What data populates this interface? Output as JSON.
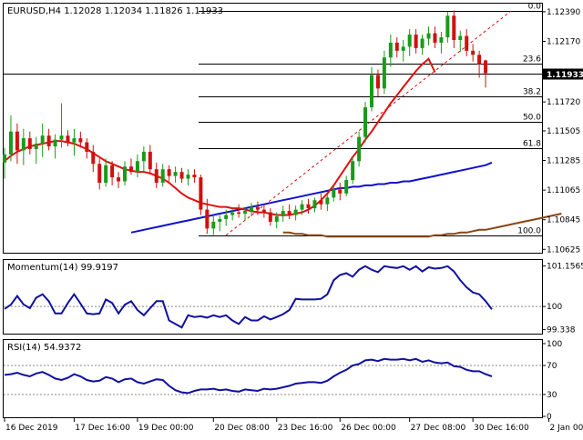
{
  "chart_data": [
    {
      "type": "candlestick",
      "title": "EURUSD,H4  1.12028 1.12034 1.11826 1.11933",
      "symbol": "EURUSD",
      "timeframe": "H4",
      "ohlc_last": [
        1.12028,
        1.12034,
        1.11826,
        1.11933
      ],
      "current_price_label": "1.11933",
      "current_price": 1.11933,
      "ylim": [
        1.106,
        1.1245
      ],
      "yticks": [
        {
          "value": 1.1239,
          "label": "1.12390"
        },
        {
          "value": 1.1217,
          "label": "1.12170"
        },
        {
          "value": 1.1172,
          "label": "1.11720"
        },
        {
          "value": 1.11505,
          "label": "1.11505"
        },
        {
          "value": 1.11285,
          "label": "1.11285"
        },
        {
          "value": 1.11065,
          "label": "1.11065"
        },
        {
          "value": 1.10845,
          "label": "1.10845"
        },
        {
          "value": 1.10625,
          "label": "1.10625"
        }
      ],
      "xticks": [
        {
          "x": 0,
          "label": "16 Dec 2019"
        },
        {
          "x": 11,
          "label": "17 Dec 16:00"
        },
        {
          "x": 21,
          "label": "19 Dec 00:00"
        },
        {
          "x": 33,
          "label": "20 Dec 08:00"
        },
        {
          "x": 43,
          "label": "23 Dec 16:00"
        },
        {
          "x": 53,
          "label": "26 Dec 00:00"
        },
        {
          "x": 64,
          "label": "27 Dec 08:00"
        },
        {
          "x": 74,
          "label": "30 Dec 16:00"
        },
        {
          "x": 86,
          "label": "2 Jan 00:00"
        }
      ],
      "fibonacci": {
        "levels": [
          {
            "label": "0.0",
            "value": 1.12395
          },
          {
            "label": "23.6",
            "value": 1.12005
          },
          {
            "label": "38.2",
            "value": 1.1176
          },
          {
            "label": "50.0",
            "value": 1.1157
          },
          {
            "label": "61.8",
            "value": 1.11375
          },
          {
            "label": "100.0",
            "value": 1.1073
          }
        ],
        "trend": {
          "from": [
            35,
            1.1073
          ],
          "to": [
            80,
            1.12395
          ]
        }
      },
      "candles": [
        [
          1.1127,
          1.1138,
          1.1115,
          1.1133
        ],
        [
          1.1133,
          1.1162,
          1.1128,
          1.115
        ],
        [
          1.115,
          1.1156,
          1.1126,
          1.1136
        ],
        [
          1.1136,
          1.1152,
          1.1125,
          1.1145
        ],
        [
          1.1145,
          1.115,
          1.1133,
          1.1137
        ],
        [
          1.1137,
          1.1146,
          1.1126,
          1.1141
        ],
        [
          1.1141,
          1.1156,
          1.1131,
          1.1147
        ],
        [
          1.1147,
          1.1152,
          1.1136,
          1.1139
        ],
        [
          1.1139,
          1.1148,
          1.113,
          1.1144
        ],
        [
          1.1144,
          1.1171,
          1.1138,
          1.1147
        ],
        [
          1.1147,
          1.1151,
          1.1139,
          1.1142
        ],
        [
          1.1142,
          1.1152,
          1.1132,
          1.1145
        ],
        [
          1.1145,
          1.115,
          1.1138,
          1.1142
        ],
        [
          1.1142,
          1.1145,
          1.113,
          1.1135
        ],
        [
          1.1135,
          1.114,
          1.112,
          1.1126
        ],
        [
          1.1126,
          1.113,
          1.1107,
          1.1112
        ],
        [
          1.1112,
          1.113,
          1.1109,
          1.1125
        ],
        [
          1.1125,
          1.1128,
          1.111,
          1.1116
        ],
        [
          1.1116,
          1.112,
          1.1108,
          1.1113
        ],
        [
          1.1113,
          1.1128,
          1.111,
          1.1124
        ],
        [
          1.1124,
          1.113,
          1.1118,
          1.112
        ],
        [
          1.112,
          1.1133,
          1.1116,
          1.1128
        ],
        [
          1.1128,
          1.1139,
          1.112,
          1.1135
        ],
        [
          1.1135,
          1.114,
          1.1118,
          1.1122
        ],
        [
          1.1122,
          1.1127,
          1.1108,
          1.1112
        ],
        [
          1.1112,
          1.1126,
          1.1109,
          1.1122
        ],
        [
          1.1122,
          1.1125,
          1.1113,
          1.1117
        ],
        [
          1.1117,
          1.1124,
          1.1112,
          1.112
        ],
        [
          1.112,
          1.1123,
          1.1112,
          1.1115
        ],
        [
          1.1115,
          1.1122,
          1.111,
          1.1118
        ],
        [
          1.1118,
          1.1122,
          1.1112,
          1.1116
        ],
        [
          1.1116,
          1.1118,
          1.1088,
          1.1092
        ],
        [
          1.1092,
          1.11,
          1.1074,
          1.1078
        ],
        [
          1.1078,
          1.1088,
          1.1073,
          1.1083
        ],
        [
          1.1083,
          1.1088,
          1.1076,
          1.1085
        ],
        [
          1.1085,
          1.1092,
          1.108,
          1.1088
        ],
        [
          1.1088,
          1.1093,
          1.1084,
          1.109
        ],
        [
          1.109,
          1.1096,
          1.1086,
          1.1089
        ],
        [
          1.1089,
          1.1094,
          1.1084,
          1.1091
        ],
        [
          1.1091,
          1.1097,
          1.1087,
          1.1094
        ],
        [
          1.1094,
          1.1098,
          1.1088,
          1.1092
        ],
        [
          1.1092,
          1.1096,
          1.1086,
          1.109
        ],
        [
          1.109,
          1.1093,
          1.108,
          1.1083
        ],
        [
          1.1083,
          1.109,
          1.1078,
          1.1087
        ],
        [
          1.1087,
          1.1095,
          1.1083,
          1.1091
        ],
        [
          1.1091,
          1.1096,
          1.1085,
          1.1088
        ],
        [
          1.1088,
          1.1095,
          1.1084,
          1.1092
        ],
        [
          1.1092,
          1.1099,
          1.1088,
          1.1096
        ],
        [
          1.1096,
          1.11,
          1.1089,
          1.1093
        ],
        [
          1.1093,
          1.1101,
          1.109,
          1.1099
        ],
        [
          1.1099,
          1.1104,
          1.1092,
          1.1096
        ],
        [
          1.1096,
          1.1103,
          1.1091,
          1.1101
        ],
        [
          1.1101,
          1.111,
          1.1098,
          1.1107
        ],
        [
          1.1107,
          1.1112,
          1.1099,
          1.1104
        ],
        [
          1.1104,
          1.1117,
          1.1102,
          1.1114
        ],
        [
          1.1114,
          1.1131,
          1.1111,
          1.1128
        ],
        [
          1.1128,
          1.115,
          1.1124,
          1.1146
        ],
        [
          1.1146,
          1.1172,
          1.1142,
          1.1168
        ],
        [
          1.1168,
          1.1198,
          1.1165,
          1.1192
        ],
        [
          1.1192,
          1.1196,
          1.1176,
          1.1182
        ],
        [
          1.1182,
          1.121,
          1.1178,
          1.1205
        ],
        [
          1.1205,
          1.1222,
          1.1198,
          1.1216
        ],
        [
          1.1216,
          1.122,
          1.1205,
          1.121
        ],
        [
          1.121,
          1.1218,
          1.1202,
          1.1213
        ],
        [
          1.1213,
          1.1226,
          1.1206,
          1.1222
        ],
        [
          1.1222,
          1.1226,
          1.1208,
          1.1212
        ],
        [
          1.1212,
          1.1222,
          1.1207,
          1.1219
        ],
        [
          1.1219,
          1.1228,
          1.1214,
          1.1223
        ],
        [
          1.1223,
          1.1228,
          1.1212,
          1.1216
        ],
        [
          1.1216,
          1.1224,
          1.1208,
          1.122
        ],
        [
          1.122,
          1.1239,
          1.1216,
          1.1236
        ],
        [
          1.1236,
          1.124,
          1.1212,
          1.1218
        ],
        [
          1.1218,
          1.1225,
          1.1209,
          1.1221
        ],
        [
          1.1221,
          1.1226,
          1.1206,
          1.121
        ],
        [
          1.121,
          1.1215,
          1.1202,
          1.1207
        ],
        [
          1.1207,
          1.121,
          1.119,
          1.12
        ],
        [
          1.12028,
          1.12034,
          1.11826,
          1.11933
        ]
      ],
      "ma_red": [
        1.1128,
        1.1132,
        1.1135,
        1.1137,
        1.1139,
        1.114,
        1.1141,
        1.1142,
        1.1143,
        1.1143,
        1.1142,
        1.1141,
        1.1139,
        1.1137,
        1.1134,
        1.1131,
        1.1128,
        1.1126,
        1.1124,
        1.1122,
        1.1121,
        1.112,
        1.112,
        1.1119,
        1.1117,
        1.1115,
        1.1112,
        1.1108,
        1.1104,
        1.1101,
        1.1099,
        1.1097,
        1.1096,
        1.1095,
        1.1094,
        1.1094,
        1.1093,
        1.1093,
        1.1092,
        1.1091,
        1.109,
        1.109,
        1.1089,
        1.1088,
        1.1088,
        1.1088,
        1.1089,
        1.109,
        1.1092,
        1.1095,
        1.1099,
        1.1104,
        1.111,
        1.1117,
        1.1124,
        1.1131,
        1.1137,
        1.1144,
        1.115,
        1.1157,
        1.1164,
        1.1171,
        1.1177,
        1.1183,
        1.1189,
        1.1195,
        1.12,
        1.1204,
        1.1194
      ],
      "ma_red_start": 0,
      "ma_blue": [
        1.1075,
        1.1076,
        1.1077,
        1.1078,
        1.1079,
        1.108,
        1.1081,
        1.1082,
        1.1083,
        1.1084,
        1.1085,
        1.1086,
        1.1087,
        1.1088,
        1.1089,
        1.109,
        1.1091,
        1.1092,
        1.1093,
        1.1094,
        1.1095,
        1.1096,
        1.1097,
        1.1098,
        1.1099,
        1.11,
        1.1101,
        1.1102,
        1.1103,
        1.1104,
        1.1105,
        1.1106,
        1.1107,
        1.1108,
        1.1108,
        1.1109,
        1.1109,
        1.111,
        1.111,
        1.1111,
        1.1111,
        1.1112,
        1.1112,
        1.1113,
        1.1113,
        1.1114,
        1.1115,
        1.1116,
        1.1117,
        1.1118,
        1.1119,
        1.112,
        1.1121,
        1.1122,
        1.1123,
        1.1124,
        1.1125,
        1.1127
      ],
      "ma_blue_start": 20,
      "ma_brown": [
        1.1075,
        1.1075,
        1.1074,
        1.1074,
        1.1073,
        1.1073,
        1.1073,
        1.1072,
        1.1072,
        1.1072,
        1.1072,
        1.1072,
        1.1072,
        1.1072,
        1.1072,
        1.1072,
        1.1072,
        1.1072,
        1.1072,
        1.1072,
        1.1072,
        1.1072,
        1.1072,
        1.1072,
        1.1073,
        1.1073,
        1.1074,
        1.1074,
        1.1075,
        1.1075,
        1.1076,
        1.1077,
        1.1077,
        1.1078,
        1.1079,
        1.108,
        1.1081,
        1.1082,
        1.1083,
        1.1084,
        1.1085,
        1.1086,
        1.1087,
        1.1088,
        1.1089
      ],
      "ma_brown_start": 44
    },
    {
      "type": "line",
      "title": "Momentum(14) 99.9197",
      "ylim": [
        99.25,
        101.25
      ],
      "yticks": [
        {
          "value": 101.1565,
          "label": "101.1565"
        },
        {
          "value": 100,
          "label": "100"
        },
        {
          "value": 99.338,
          "label": "99.338"
        }
      ],
      "reference_level": 100,
      "values": [
        99.93,
        100.05,
        100.3,
        100.06,
        99.95,
        100.25,
        100.35,
        100.15,
        99.8,
        99.8,
        100.1,
        100.35,
        100.08,
        99.8,
        99.78,
        99.8,
        100.2,
        100.1,
        99.8,
        100.05,
        100.15,
        99.9,
        99.75,
        99.95,
        100.15,
        100.15,
        99.6,
        99.5,
        99.4,
        99.75,
        99.7,
        99.72,
        99.68,
        99.75,
        99.7,
        99.75,
        99.6,
        99.5,
        99.7,
        99.6,
        99.6,
        99.72,
        99.63,
        99.7,
        99.78,
        99.9,
        100.22,
        100.2,
        100.2,
        100.2,
        100.22,
        100.35,
        100.75,
        100.9,
        100.95,
        100.85,
        101.05,
        101.15,
        101.05,
        100.98,
        101.15,
        101.12,
        101.1,
        101.15,
        101.05,
        101.15,
        101.0,
        101.12,
        101.08,
        101.1,
        101.15,
        101.0,
        100.75,
        100.55,
        100.4,
        100.35,
        100.15,
        99.92
      ]
    },
    {
      "type": "line",
      "title": "RSI(14) 54.9372",
      "ylim": [
        0,
        100
      ],
      "yticks": [
        {
          "value": 100,
          "label": "100"
        },
        {
          "value": 70,
          "label": "70"
        },
        {
          "value": 30,
          "label": "30"
        },
        {
          "value": 0,
          "label": "0"
        }
      ],
      "levels": [
        70,
        30
      ],
      "values": [
        57,
        58,
        60,
        57,
        55,
        59,
        61,
        57,
        52,
        50,
        53,
        58,
        55,
        50,
        48,
        49,
        54,
        52,
        47,
        51,
        52,
        47,
        45,
        48,
        51,
        50,
        42,
        36,
        33,
        32,
        35,
        37,
        37,
        38,
        36,
        37,
        35,
        34,
        37,
        36,
        35,
        38,
        37,
        38,
        40,
        42,
        45,
        46,
        47,
        47,
        46,
        49,
        55,
        60,
        64,
        70,
        72,
        77,
        78,
        76,
        79,
        78,
        78,
        79,
        77,
        79,
        75,
        77,
        74,
        73,
        74,
        69,
        68,
        64,
        62,
        62,
        58,
        55
      ]
    }
  ]
}
